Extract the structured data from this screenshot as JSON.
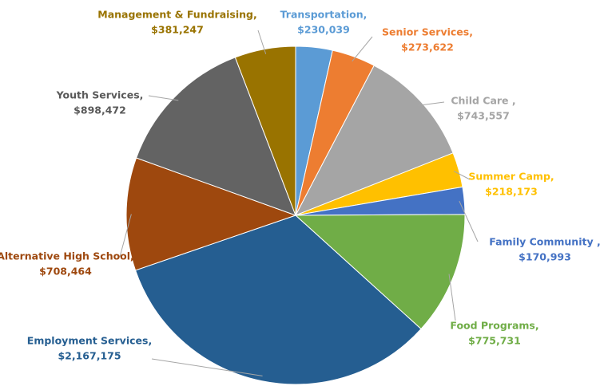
{
  "chart_data": {
    "type": "pie",
    "categories": [
      "Transportation,",
      "Senior Services,",
      "Child Care ,",
      "Summer Camp,",
      "Family Community ,",
      "Food Programs,",
      "Employment Services,",
      "Alternative High School,",
      "Youth Services,",
      "Management & Fundraising,"
    ],
    "values": [
      230039,
      273622,
      743557,
      218173,
      170993,
      775731,
      2167175,
      708464,
      898472,
      381247
    ],
    "value_labels": [
      "$230,039",
      "$273,622",
      "$743,557",
      "$218,173",
      "$170,993",
      "$775,731",
      "$2,167,175",
      "$708,464",
      "$898,472",
      "$381,247"
    ],
    "colors": [
      "#5b9bd5",
      "#ed7d31",
      "#a5a5a5",
      "#ffc000",
      "#4472c4",
      "#70ad47",
      "#255e91",
      "#9e480e",
      "#636363",
      "#997300"
    ]
  }
}
